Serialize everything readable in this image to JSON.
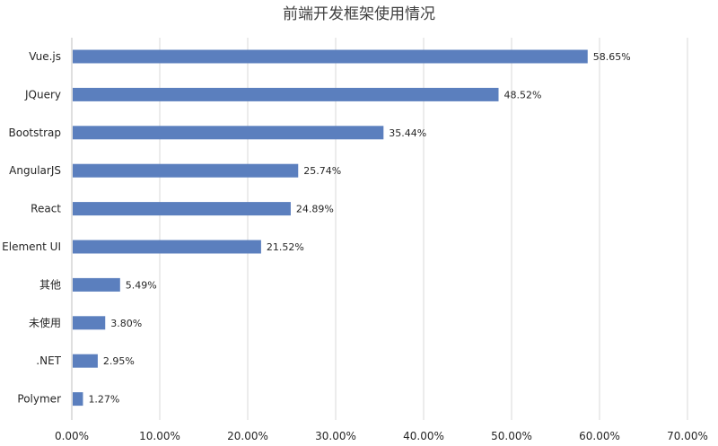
{
  "chart_data": {
    "type": "bar",
    "orientation": "horizontal",
    "title": "前端开发框架使用情况",
    "categories": [
      "Vue.js",
      "JQuery",
      "Bootstrap",
      "AngularJS",
      "React",
      "Element UI",
      "其他",
      "未使用",
      ".NET",
      "Polymer"
    ],
    "values": [
      58.65,
      48.52,
      35.44,
      25.74,
      24.89,
      21.52,
      5.49,
      3.8,
      2.95,
      1.27
    ],
    "data_labels": [
      "58.65%",
      "48.52%",
      "35.44%",
      "25.74%",
      "24.89%",
      "21.52%",
      "5.49%",
      "3.80%",
      "2.95%",
      "1.27%"
    ],
    "x_ticks": [
      "0.00%",
      "10.00%",
      "20.00%",
      "30.00%",
      "40.00%",
      "50.00%",
      "60.00%",
      "70.00%"
    ],
    "xlim": [
      0,
      70
    ],
    "unit": "%",
    "grid": "vertical",
    "legend": "none",
    "colors": {
      "bar": "#5b7fbe",
      "grid": "#d9d9d9",
      "axis": "#bfbfbf",
      "text": "#262626",
      "title": "#404040"
    }
  }
}
